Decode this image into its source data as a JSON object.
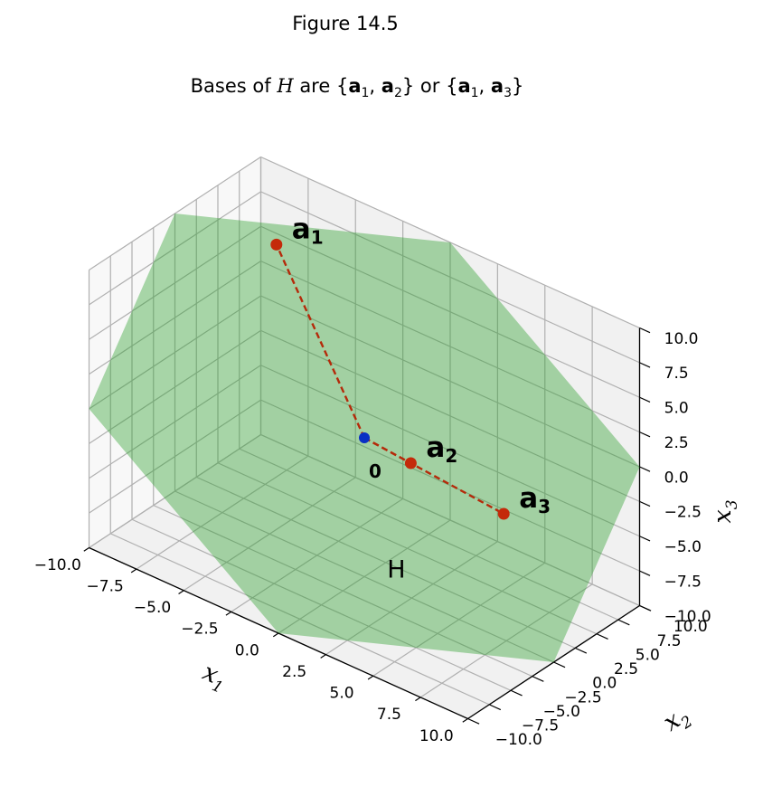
{
  "figure_label": "Figure 14.5",
  "title_parts": {
    "prefix": "Bases of ",
    "h": "H",
    "mid1": " are {",
    "a": "a",
    "s1": "1",
    "comma": ", ",
    "s2": "2",
    "mid2": "} or {",
    "s3": "3",
    "end": "}"
  },
  "chart_data": {
    "type": "scatter",
    "projection": "3d",
    "xlim": [
      -10,
      10
    ],
    "ylim": [
      -10,
      10
    ],
    "zlim": [
      -10,
      10
    ],
    "ticks": [
      -10,
      -7.5,
      -5,
      -2.5,
      0,
      2.5,
      5,
      7.5,
      10
    ],
    "tick_labels": [
      "−10.0",
      "−7.5",
      "−5.0",
      "−2.5",
      "0.0",
      "2.5",
      "5.0",
      "7.5",
      "10.0"
    ],
    "xlabel": {
      "base": "x",
      "sub": "1"
    },
    "ylabel": {
      "base": "x",
      "sub": "2"
    },
    "zlabel": {
      "base": "x",
      "sub": "3"
    },
    "grid": true,
    "plane": {
      "name": "H",
      "z_formula": "z = -x + y",
      "color": "#2ca02c",
      "alpha": 0.4
    },
    "origin": {
      "label": "0",
      "x": 0,
      "y": 0,
      "z": 0,
      "color": "#0a2fc4"
    },
    "points": [
      {
        "base": "a",
        "sub": "1",
        "x": -6,
        "y": 3,
        "z": 9,
        "color": "#c42a0a"
      },
      {
        "base": "a",
        "sub": "2",
        "x": 2,
        "y": 1,
        "z": -1,
        "color": "#c42a0a"
      },
      {
        "base": "a",
        "sub": "3",
        "x": 6,
        "y": 3,
        "z": -3,
        "color": "#c42a0a"
      }
    ],
    "segments_style": {
      "color": "#b52a0a",
      "dash": "dashed"
    }
  }
}
